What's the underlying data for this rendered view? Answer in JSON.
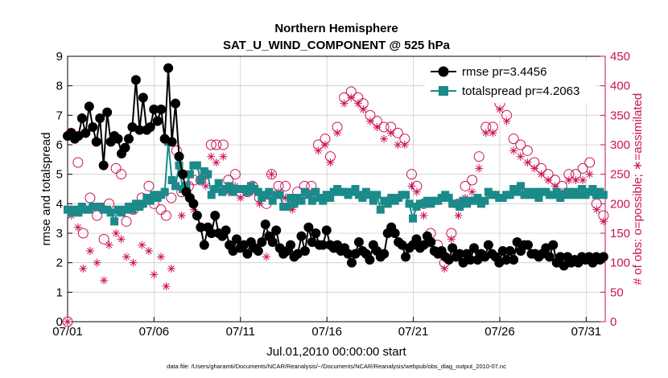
{
  "chart_data": {
    "type": "line",
    "title": "Northern Hemisphere",
    "subtitle": "SAT_U_WIND_COMPONENT @ 525 hPa",
    "xlabel": "Jul.01,2010 00:00:00 start",
    "ylabel_left": "rmse and totalspread",
    "ylabel_right": "# of obs: o=possible; ∗=assimilated",
    "x_unit": "day of month (July 2010)",
    "xlim": [
      1,
      32.1
    ],
    "ylim_left": [
      0,
      9
    ],
    "ylim_right": [
      0,
      450
    ],
    "x_ticks": [
      1,
      6,
      11,
      16,
      21,
      26,
      31
    ],
    "x_tick_labels": [
      "07/01",
      "07/06",
      "07/11",
      "07/16",
      "07/21",
      "07/26",
      "07/31"
    ],
    "y_ticks_left": [
      0,
      1,
      2,
      3,
      4,
      5,
      6,
      7,
      8,
      9
    ],
    "y_ticks_right": [
      0,
      50,
      100,
      150,
      200,
      250,
      300,
      350,
      400,
      450
    ],
    "grid": true,
    "legend_position": "top-right",
    "colors": {
      "rmse": "#000000",
      "totalspread": "#1b8a8a",
      "obs": "#cc1155",
      "grid": "#cccccc"
    },
    "series": [
      {
        "name": "rmse",
        "label": "rmse pr=3.4456",
        "values": [
          6.3,
          6.4,
          6.2,
          6.3,
          6.9,
          6.4,
          7.3,
          6.6,
          6.1,
          6.9,
          5.3,
          7.1,
          6.1,
          6.3,
          6.2,
          5.7,
          5.9,
          6.2,
          6.6,
          8.2,
          6.5,
          7.6,
          6.5,
          6.6,
          7.2,
          6.8,
          7.2,
          6.2,
          8.6,
          6.1,
          7.4,
          5.6,
          5.0,
          4.4,
          4.2,
          4.0,
          3.6,
          3.2,
          2.6,
          3.2,
          3.0,
          3.6,
          3.0,
          2.9,
          3.1,
          2.6,
          2.4,
          2.8,
          2.5,
          2.6,
          2.3,
          2.7,
          2.5,
          2.4,
          2.7,
          3.3,
          2.9,
          2.7,
          3.1,
          2.5,
          2.3,
          2.4,
          2.6,
          2.2,
          2.3,
          2.9,
          2.4,
          3.2,
          2.7,
          3.0,
          2.6,
          2.6,
          3.1,
          2.6,
          2.5,
          2.6,
          2.4,
          2.5,
          2.3,
          2.0,
          2.3,
          2.7,
          2.4,
          2.3,
          2.1,
          2.6,
          2.4,
          2.2,
          2.3,
          3.0,
          3.2,
          3.0,
          2.7,
          2.6,
          2.2,
          2.5,
          2.6,
          2.8,
          2.5,
          2.6,
          2.9,
          2.7,
          2.4,
          2.3,
          2.4,
          2.2,
          2.1,
          2.5,
          2.2,
          2.3,
          2.0,
          2.3,
          2.1,
          2.5,
          2.1,
          2.3,
          2.2,
          2.6,
          2.3,
          2.2,
          2.0,
          2.4,
          2.1,
          2.4,
          2.1,
          2.7,
          2.4,
          2.6,
          2.6,
          2.3,
          2.3,
          2.2,
          2.3,
          2.5,
          2.2,
          2.6,
          2.0,
          2.2,
          1.9,
          2.2,
          2.0,
          2.1,
          2.0,
          2.2,
          2.1,
          2.2,
          2.0,
          2.2,
          2.1,
          2.2
        ]
      },
      {
        "name": "totalspread",
        "label": "totalspread pr=4.2063",
        "values": [
          3.8,
          3.7,
          3.8,
          3.7,
          3.9,
          3.8,
          3.8,
          3.9,
          3.9,
          3.9,
          3.8,
          3.8,
          3.7,
          3.4,
          3.8,
          3.7,
          3.8,
          3.9,
          3.8,
          4.0,
          3.9,
          4.0,
          4.2,
          4.1,
          4.3,
          4.2,
          4.3,
          4.4,
          6.1,
          4.8,
          4.6,
          5.3,
          4.5,
          4.6,
          5.0,
          5.3,
          5.3,
          4.8,
          5.1,
          5.0,
          4.3,
          4.5,
          4.7,
          4.4,
          4.5,
          4.6,
          4.4,
          4.5,
          4.5,
          4.5,
          4.4,
          4.6,
          4.5,
          4.4,
          4.2,
          4.3,
          4.4,
          4.1,
          4.3,
          4.3,
          3.9,
          3.9,
          4.2,
          4.0,
          4.2,
          4.1,
          4.4,
          4.3,
          4.1,
          4.4,
          4.2,
          4.1,
          4.3,
          4.2,
          4.4,
          4.5,
          4.4,
          4.4,
          4.3,
          4.4,
          4.5,
          4.3,
          4.2,
          4.4,
          4.3,
          4.1,
          4.3,
          3.8,
          4.1,
          4.0,
          4.2,
          4.1,
          4.2,
          4.3,
          4.3,
          4.0,
          3.5,
          3.9,
          4.0,
          4.0,
          4.1,
          4.0,
          4.1,
          4.1,
          4.2,
          4.3,
          4.2,
          4.0,
          4.0,
          3.9,
          4.1,
          4.0,
          4.1,
          4.1,
          4.2,
          4.0,
          4.1,
          4.4,
          4.3,
          4.3,
          4.2,
          4.2,
          4.3,
          4.3,
          4.5,
          4.4,
          4.6,
          4.3,
          4.4,
          4.3,
          4.4,
          4.2,
          4.4,
          4.4,
          4.3,
          4.3,
          4.4,
          4.2,
          4.3,
          4.4,
          4.3,
          4.4,
          4.3,
          4.5,
          4.3,
          4.4,
          4.5,
          4.3,
          4.4,
          4.3
        ]
      },
      {
        "name": "obs_possible",
        "label": "o=possible",
        "x": [
          1.0,
          1.2,
          1.6,
          1.9,
          2.3,
          2.7,
          3.1,
          3.4,
          3.8,
          4.1,
          4.4,
          4.8,
          5.3,
          5.7,
          6.0,
          6.4,
          6.7,
          7.0,
          7.3,
          7.6,
          8.0,
          8.3,
          8.7,
          9.0,
          9.3,
          9.6,
          10.0,
          10.3,
          10.7,
          11.0,
          11.4,
          11.7,
          12.1,
          12.5,
          12.8,
          13.2,
          13.6,
          14.0,
          14.3,
          14.7,
          15.1,
          15.5,
          15.9,
          16.2,
          16.6,
          17.0,
          17.4,
          17.8,
          18.1,
          18.5,
          18.9,
          19.3,
          19.7,
          20.1,
          20.5,
          20.9,
          21.2,
          21.6,
          22.0,
          22.4,
          22.8,
          23.2,
          23.6,
          24.0,
          24.4,
          24.8,
          25.2,
          25.6,
          26.0,
          26.4,
          26.8,
          27.2,
          27.6,
          28.0,
          28.4,
          28.8,
          29.2,
          29.6,
          30.0,
          30.4,
          30.8,
          31.2,
          31.6,
          32.0
        ],
        "values": [
          0,
          320,
          270,
          150,
          210,
          180,
          140,
          200,
          260,
          250,
          170,
          190,
          210,
          230,
          200,
          190,
          180,
          210,
          290,
          220,
          230,
          240,
          240,
          250,
          300,
          300,
          300,
          240,
          250,
          220,
          220,
          230,
          210,
          200,
          250,
          230,
          230,
          200,
          220,
          230,
          230,
          300,
          310,
          280,
          330,
          380,
          390,
          380,
          370,
          350,
          340,
          330,
          330,
          320,
          310,
          250,
          230,
          200,
          150,
          130,
          100,
          150,
          200,
          230,
          240,
          280,
          330,
          330,
          370,
          350,
          310,
          300,
          290,
          270,
          260,
          250,
          240,
          230,
          250,
          250,
          260,
          270,
          200,
          180
        ]
      },
      {
        "name": "obs_assimilated",
        "label": "∗=assimilated",
        "x": [
          1.0,
          1.2,
          1.6,
          1.9,
          2.3,
          2.7,
          3.1,
          3.4,
          3.8,
          4.1,
          4.4,
          4.8,
          5.3,
          5.7,
          6.0,
          6.4,
          6.7,
          7.0,
          7.3,
          7.6,
          8.0,
          8.3,
          8.7,
          9.0,
          9.3,
          9.6,
          10.0,
          10.3,
          10.7,
          11.0,
          11.4,
          11.7,
          12.1,
          12.5,
          12.8,
          13.2,
          13.6,
          14.0,
          14.3,
          14.7,
          15.1,
          15.5,
          15.9,
          16.2,
          16.6,
          17.0,
          17.4,
          17.8,
          18.1,
          18.5,
          18.9,
          19.3,
          19.7,
          20.1,
          20.5,
          20.9,
          21.2,
          21.6,
          22.0,
          22.4,
          22.8,
          23.2,
          23.6,
          24.0,
          24.4,
          24.8,
          25.2,
          25.6,
          26.0,
          26.4,
          26.8,
          27.2,
          27.6,
          28.0,
          28.4,
          28.8,
          29.2,
          29.6,
          30.0,
          30.4,
          30.8,
          31.2,
          31.6,
          32.0
        ],
        "values": [
          0,
          180,
          160,
          90,
          120,
          100,
          70,
          130,
          150,
          140,
          110,
          100,
          130,
          120,
          80,
          110,
          60,
          90,
          230,
          180,
          210,
          190,
          240,
          230,
          280,
          270,
          280,
          220,
          230,
          210,
          220,
          220,
          200,
          110,
          250,
          220,
          210,
          190,
          210,
          220,
          220,
          290,
          300,
          270,
          320,
          370,
          380,
          370,
          360,
          340,
          330,
          310,
          320,
          300,
          300,
          230,
          220,
          180,
          130,
          120,
          90,
          140,
          180,
          210,
          220,
          260,
          320,
          320,
          360,
          340,
          290,
          280,
          270,
          260,
          250,
          240,
          230,
          220,
          240,
          240,
          240,
          250,
          190,
          170
        ]
      }
    ]
  },
  "footer": {
    "datafile": "data file: /Users/gharamti/Documents/NCAR/Reanalysis/~/Documents/NCAR/Reanalysis/webpub/obs_diag_output_2010-07.nc"
  }
}
